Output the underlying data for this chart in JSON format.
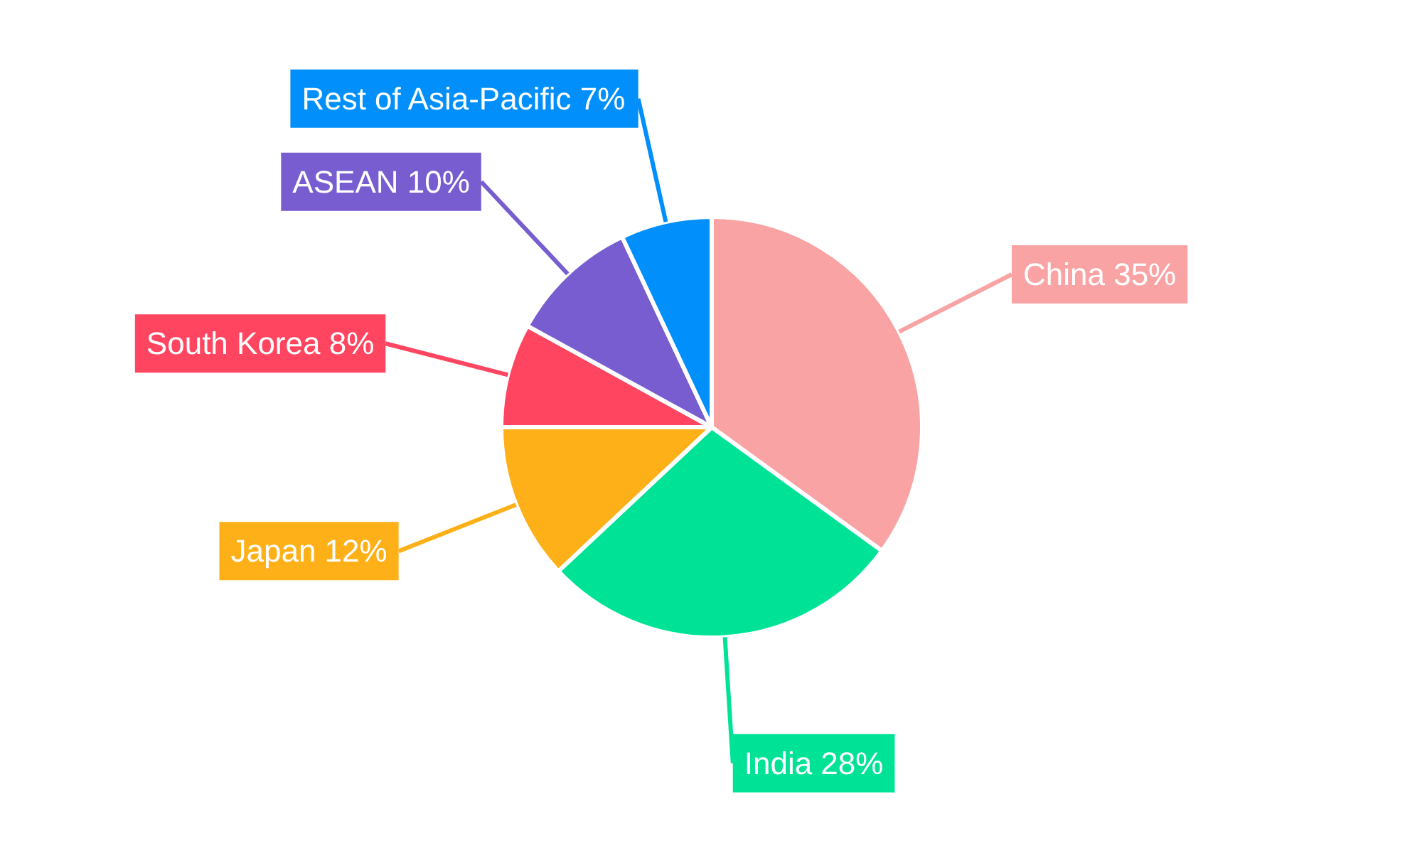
{
  "chart_data": {
    "type": "pie",
    "categories": [
      "China",
      "India",
      "Japan",
      "South Korea",
      "ASEAN",
      "Rest of Asia-Pacific"
    ],
    "values": [
      35,
      28,
      12,
      8,
      10,
      7
    ],
    "colors": [
      "#f9a3a4",
      "#00e396",
      "#feb019",
      "#ff4560",
      "#775dd0",
      "#008ffb"
    ],
    "value_labels": [
      "35%",
      "28%",
      "12%",
      "8%",
      "10%",
      "7%"
    ],
    "legend": false
  }
}
